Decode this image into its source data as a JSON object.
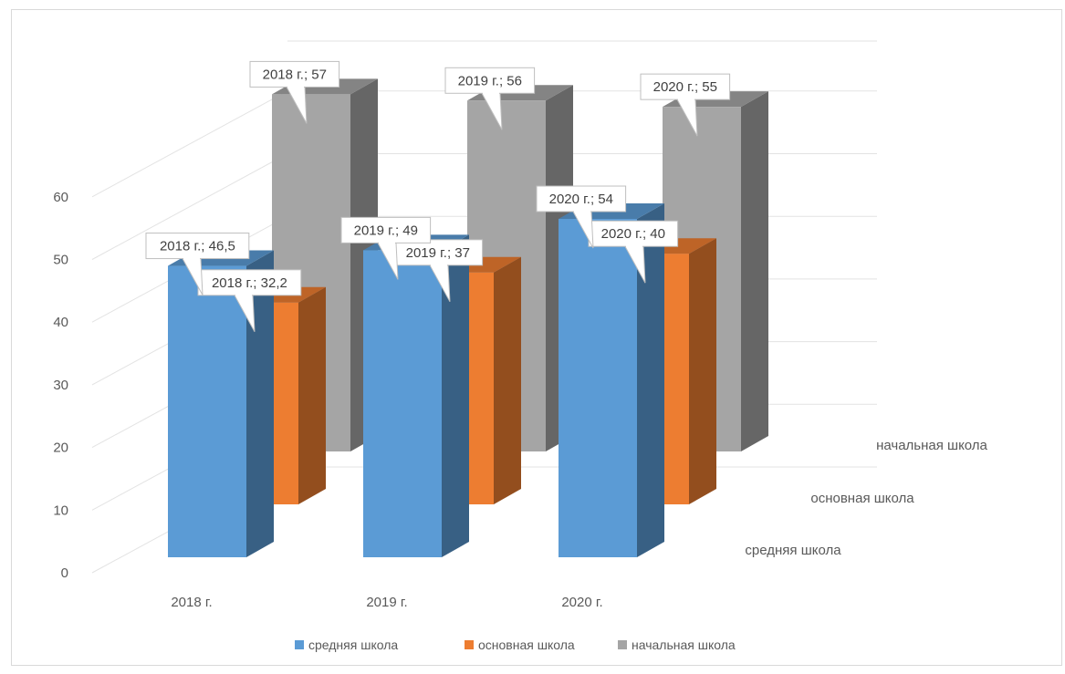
{
  "chart_data": {
    "type": "bar",
    "categories": [
      "2018 г.",
      "2019 г.",
      "2020 г."
    ],
    "series": [
      {
        "name": "средняя школа",
        "color": "#5b9bd5",
        "values": [
          46.5,
          49,
          54
        ],
        "data_labels": [
          "2018 г.; 46,5",
          "2019 г.; 49",
          "2020 г.; 54"
        ]
      },
      {
        "name": "основная школа",
        "color": "#ed7d31",
        "values": [
          32.2,
          37,
          40
        ],
        "data_labels": [
          "2018 г.; 32,2",
          "2019 г.; 37",
          "2020 г.; 40"
        ]
      },
      {
        "name": "начальная школа",
        "color": "#a5a5a5",
        "values": [
          57,
          56,
          55
        ],
        "data_labels": [
          "2018 г.; 57",
          "2019 г.; 56",
          "2020 г.; 55"
        ]
      }
    ],
    "y_ticks": [
      "0",
      "10",
      "20",
      "30",
      "40",
      "50",
      "60"
    ],
    "ylim": [
      0,
      60
    ],
    "grid": true,
    "legend_position": "bottom",
    "title": "",
    "xlabel": "",
    "ylabel": ""
  }
}
